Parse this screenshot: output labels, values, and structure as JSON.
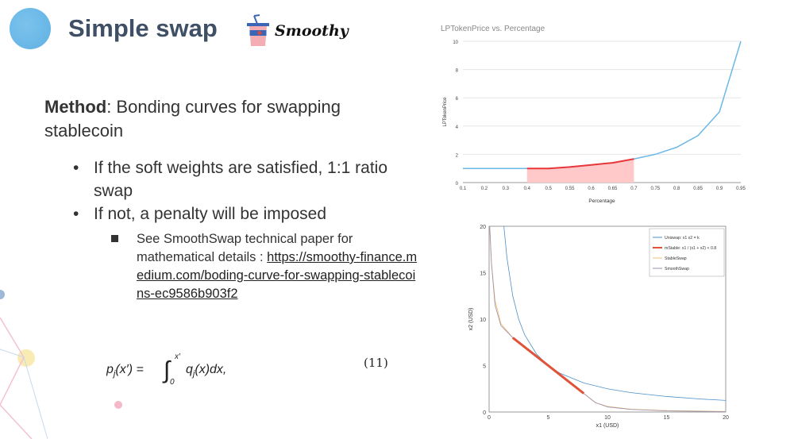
{
  "slide": {
    "title": "Simple swap",
    "brand": "Smoothy",
    "method_label": "Method",
    "method_text": ": Bonding curves for swapping stablecoin",
    "bullets": [
      "If the soft weights are satisfied, 1:1 ratio swap",
      "If not, a penalty will be imposed"
    ],
    "sub_bullet_text": "See SmoothSwap technical paper for mathematical details : ",
    "sub_bullet_link": "https://smoothy-finance.medium.com/boding-curve-for-swapping-stablecoins-ec9586b903f2",
    "formula": "p_j(x′) = ∫₀^x′ q_j(x)dx,",
    "equation_number": "(11)"
  },
  "colors": {
    "title": "#3f4f66",
    "line_blue": "#6cb8e6",
    "highlight_red": "#e8363a",
    "highlight_fill": "#ffc9c9",
    "uniswap": "#4a8fc8",
    "mstable": "#e0533a",
    "stableswap": "#f3c27a",
    "smoothswap": "#9a8fb5"
  },
  "chart_data": [
    {
      "type": "line",
      "title": "LPTokenPrice vs. Percentage",
      "xlabel": "Percentage",
      "ylabel": "LPTokenPrice",
      "categories": [
        "0.1",
        "0.2",
        "0.3",
        "0.4",
        "0.5",
        "0.55",
        "0.6",
        "0.65",
        "0.7",
        "0.75",
        "0.8",
        "0.85",
        "0.9",
        "0.95"
      ],
      "values": [
        1,
        1,
        1,
        1,
        1,
        1.1,
        1.25,
        1.4,
        1.67,
        2,
        2.5,
        3.33,
        5,
        10
      ],
      "highlight_range": [
        "0.4",
        "0.7"
      ],
      "yticks": [
        0,
        2,
        4,
        6,
        8,
        10
      ],
      "ylim": [
        0,
        10
      ],
      "grid": true
    },
    {
      "type": "line",
      "xlabel": "x1 (USD)",
      "ylabel": "x2 (USD)",
      "xlim": [
        0,
        20
      ],
      "ylim": [
        0,
        20
      ],
      "xticks": [
        0,
        5,
        10,
        15,
        20
      ],
      "yticks": [
        0,
        5,
        10,
        15,
        20
      ],
      "legend": "top-right",
      "series": [
        {
          "name": "Uniswap: x1 x2 = k",
          "x": [
            1.25,
            1.5,
            2,
            2.5,
            3,
            4,
            5,
            6,
            8,
            10,
            12,
            15,
            18,
            20
          ],
          "y": [
            20,
            16.67,
            12.5,
            10,
            8.33,
            6.25,
            5,
            4.17,
            3.13,
            2.5,
            2.08,
            1.67,
            1.39,
            1.25
          ]
        },
        {
          "name": "mStable: x1 / (x1 + x2) < 0.8",
          "x": [
            2,
            8
          ],
          "y": [
            8,
            2
          ]
        },
        {
          "name": "StableSwap",
          "x": [
            0.05,
            0.2,
            0.5,
            1,
            2,
            4,
            5,
            6,
            8,
            9,
            10,
            12,
            15,
            20
          ],
          "y": [
            20,
            16,
            12,
            9.5,
            8,
            6,
            5,
            4,
            2,
            1,
            0.6,
            0.3,
            0.15,
            0.05
          ]
        },
        {
          "name": "SmoothSwap",
          "x": [
            0.05,
            0.2,
            0.5,
            1,
            2,
            4,
            5,
            6,
            8,
            9,
            10,
            12,
            15,
            20
          ],
          "y": [
            20,
            16,
            11.5,
            9.3,
            8,
            6,
            5,
            4,
            2,
            1,
            0.55,
            0.28,
            0.12,
            0.04
          ]
        }
      ]
    }
  ]
}
